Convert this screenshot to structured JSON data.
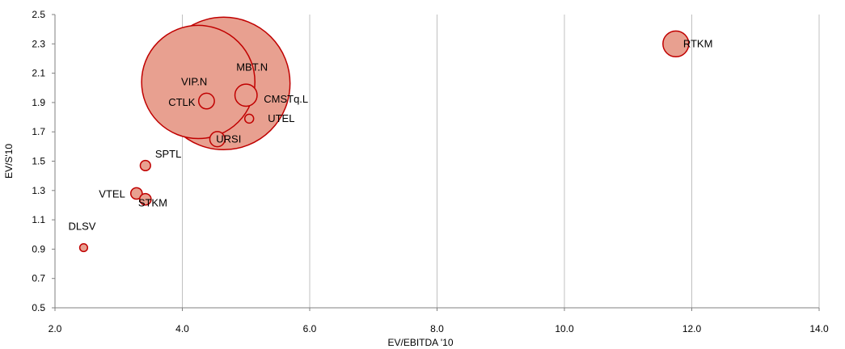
{
  "chart_data": {
    "type": "scatter",
    "subtype": "bubble",
    "title": "",
    "xlabel": "EV/EBITDA '10",
    "ylabel": "EV/S'10",
    "xlim": [
      2.0,
      14.0
    ],
    "ylim": [
      0.5,
      2.5
    ],
    "xticks": [
      2.0,
      4.0,
      6.0,
      8.0,
      10.0,
      12.0,
      14.0
    ],
    "yticks": [
      0.5,
      0.7,
      0.9,
      1.1,
      1.3,
      1.5,
      1.7,
      1.9,
      2.1,
      2.3,
      2.5
    ],
    "xtick_labels": [
      "2.0",
      "4.0",
      "6.0",
      "8.0",
      "10.0",
      "12.0",
      "14.0"
    ],
    "ytick_labels": [
      "0.5",
      "0.7",
      "0.9",
      "1.1",
      "1.3",
      "1.5",
      "1.7",
      "1.9",
      "2.1",
      "2.3",
      "2.5"
    ],
    "grid": "vertical",
    "legend": "none",
    "bubble_fill": "#e8a090",
    "bubble_stroke": "#c00000",
    "points": [
      {
        "label": "MBT.N",
        "x": 4.65,
        "y": 2.03,
        "size": 100
      },
      {
        "label": "VIP.N",
        "x": 4.25,
        "y": 2.04,
        "size": 73
      },
      {
        "label": "RTKM",
        "x": 11.75,
        "y": 2.3,
        "size": 3.8
      },
      {
        "label": "CMSTq.L",
        "x": 5.0,
        "y": 1.95,
        "size": 2.8
      },
      {
        "label": "CTLK",
        "x": 4.38,
        "y": 1.91,
        "size": 1.4
      },
      {
        "label": "URSI",
        "x": 4.55,
        "y": 1.65,
        "size": 1.3
      },
      {
        "label": "VTEL",
        "x": 3.28,
        "y": 1.28,
        "size": 0.75
      },
      {
        "label": "STKM",
        "x": 3.42,
        "y": 1.24,
        "size": 0.75
      },
      {
        "label": "SPTL",
        "x": 3.42,
        "y": 1.47,
        "size": 0.6
      },
      {
        "label": "UTEL",
        "x": 5.05,
        "y": 1.79,
        "size": 0.45
      },
      {
        "label": "DLSV",
        "x": 2.45,
        "y": 0.91,
        "size": 0.35
      }
    ]
  }
}
